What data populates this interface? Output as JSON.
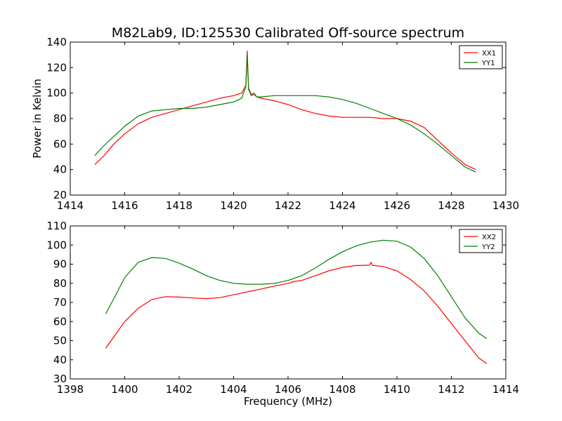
{
  "figure": {
    "title": "M82Lab9, ID:125530 Calibrated Off-source spectrum"
  },
  "chart_data": [
    {
      "type": "line",
      "title": "M82Lab9, ID:125530 Calibrated Off-source spectrum",
      "xlabel": "",
      "ylabel": "Power in Kelvin",
      "xlim": [
        1414,
        1430
      ],
      "ylim": [
        20,
        140
      ],
      "xticks": [
        1414,
        1416,
        1418,
        1420,
        1422,
        1424,
        1426,
        1428,
        1430
      ],
      "yticks": [
        20,
        40,
        60,
        80,
        100,
        120,
        140
      ],
      "legend": "top-right",
      "grid": false,
      "series": [
        {
          "name": "XX1",
          "color": "#ff0000",
          "x": [
            1414.9,
            1415.2,
            1415.6,
            1416.0,
            1416.5,
            1417.0,
            1417.5,
            1418.0,
            1418.5,
            1419.0,
            1419.5,
            1420.0,
            1420.3,
            1420.45,
            1420.5,
            1420.55,
            1420.65,
            1420.75,
            1420.85,
            1421.0,
            1421.5,
            1422.0,
            1422.5,
            1423.0,
            1423.5,
            1424.0,
            1424.5,
            1425.0,
            1425.5,
            1426.0,
            1426.5,
            1427.0,
            1427.5,
            1428.0,
            1428.5,
            1428.9
          ],
          "y": [
            44,
            50,
            60,
            68,
            76,
            81,
            84,
            87,
            90,
            93,
            96,
            98,
            100,
            106,
            133,
            104,
            99,
            100,
            97,
            96,
            94,
            91,
            87,
            84,
            82,
            81,
            81,
            81,
            80,
            80,
            78,
            73,
            63,
            53,
            44,
            40
          ]
        },
        {
          "name": "YY1",
          "color": "#008000",
          "x": [
            1414.9,
            1415.2,
            1415.6,
            1416.0,
            1416.5,
            1417.0,
            1417.5,
            1418.0,
            1418.5,
            1419.0,
            1419.5,
            1420.0,
            1420.3,
            1420.45,
            1420.5,
            1420.55,
            1420.65,
            1420.75,
            1420.85,
            1421.0,
            1421.5,
            1422.0,
            1422.5,
            1423.0,
            1423.5,
            1424.0,
            1424.5,
            1425.0,
            1425.5,
            1426.0,
            1426.5,
            1427.0,
            1427.5,
            1428.0,
            1428.5,
            1428.9
          ],
          "y": [
            51,
            58,
            66,
            74,
            82,
            86,
            87,
            88,
            88,
            89,
            91,
            93,
            96,
            105,
            130,
            103,
            98,
            99,
            97,
            97,
            98,
            98,
            98,
            98,
            97,
            95,
            92,
            88,
            84,
            80,
            75,
            68,
            60,
            51,
            42,
            38
          ]
        }
      ]
    },
    {
      "type": "line",
      "title": "",
      "xlabel": "Frequency (MHz)",
      "ylabel": "",
      "xlim": [
        1398,
        1414
      ],
      "ylim": [
        30,
        110
      ],
      "xticks": [
        1398,
        1400,
        1402,
        1404,
        1406,
        1408,
        1410,
        1412,
        1414
      ],
      "yticks": [
        30,
        40,
        50,
        60,
        70,
        80,
        90,
        100,
        110
      ],
      "legend": "top-right",
      "grid": false,
      "series": [
        {
          "name": "XX2",
          "color": "#ff0000",
          "x": [
            1399.3,
            1399.6,
            1400.0,
            1400.5,
            1401.0,
            1401.5,
            1402.0,
            1402.5,
            1403.0,
            1403.5,
            1404.0,
            1404.5,
            1405.0,
            1405.5,
            1406.0,
            1406.25,
            1406.5,
            1407.0,
            1407.5,
            1408.0,
            1408.5,
            1409.0,
            1409.05,
            1409.1,
            1409.5,
            1410.0,
            1410.5,
            1411.0,
            1411.5,
            1412.0,
            1412.5,
            1413.0,
            1413.3
          ],
          "y": [
            46,
            52,
            60,
            67,
            71.5,
            73,
            72.8,
            72.3,
            72,
            72.5,
            74,
            75.5,
            77,
            78.5,
            80,
            81,
            81.5,
            84,
            86.5,
            88.3,
            89.3,
            89.5,
            91,
            89.4,
            88.8,
            86.5,
            82,
            76,
            68,
            59,
            50,
            41,
            38
          ]
        },
        {
          "name": "YY2",
          "color": "#008000",
          "x": [
            1399.3,
            1399.6,
            1400.0,
            1400.5,
            1401.0,
            1401.5,
            1402.0,
            1402.5,
            1403.0,
            1403.5,
            1404.0,
            1404.5,
            1405.0,
            1405.5,
            1406.0,
            1406.5,
            1407.0,
            1407.5,
            1408.0,
            1408.5,
            1409.0,
            1409.5,
            1410.0,
            1410.5,
            1411.0,
            1411.5,
            1412.0,
            1412.5,
            1413.0,
            1413.3
          ],
          "y": [
            64,
            72,
            83,
            91,
            93.5,
            93,
            90.5,
            87.5,
            84,
            81.5,
            80,
            79.5,
            79.5,
            80,
            81.5,
            84,
            88,
            92.5,
            96.5,
            99.5,
            101.5,
            102.5,
            102,
            99,
            93,
            84,
            73,
            62,
            54,
            51
          ]
        }
      ]
    }
  ]
}
